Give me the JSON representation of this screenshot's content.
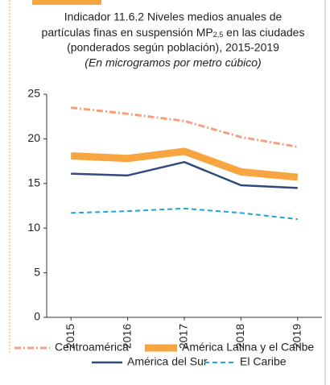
{
  "chart_data": {
    "type": "line",
    "title": [
      "Indicador 11.6.2 Niveles medios anuales de",
      "partículas finas en suspensión MP",
      "2,5",
      " en las ciudades",
      "(ponderados según población), 2015-2019"
    ],
    "subtitle": "(En microgramos por metro cúbico)",
    "categories": [
      "2015",
      "2016",
      "2017",
      "2018",
      "2019"
    ],
    "ylim": [
      0,
      25
    ],
    "yticks": [
      0,
      5,
      10,
      15,
      20,
      25
    ],
    "series": [
      {
        "name": "Centroamérica",
        "color": "#f4a07e",
        "style": "dashdot",
        "values": [
          23.5,
          22.8,
          22.0,
          20.2,
          19.1
        ]
      },
      {
        "name": "América Latina y el Caribe",
        "color": "#f7a541",
        "style": "thick",
        "values": [
          18.1,
          17.8,
          18.6,
          16.3,
          15.7
        ]
      },
      {
        "name": "América del Sur",
        "color": "#2f4b7c",
        "style": "solid",
        "values": [
          16.1,
          15.9,
          17.4,
          14.8,
          14.5
        ]
      },
      {
        "name": "El Caribe",
        "color": "#1fa6d8",
        "style": "dashed",
        "values": [
          11.7,
          11.9,
          12.2,
          11.7,
          11.0
        ]
      }
    ]
  }
}
